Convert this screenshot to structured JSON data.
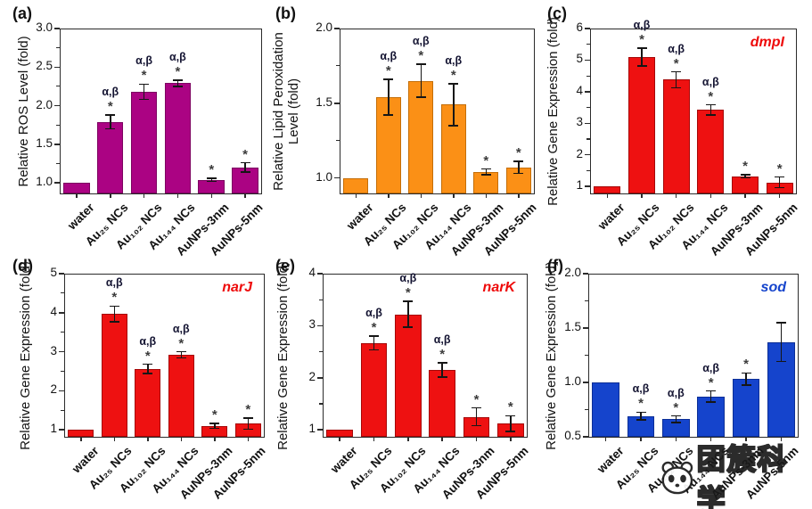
{
  "categories": [
    "water",
    "Au₂₅ NCs",
    "Au₁₀₂ NCs",
    "Au₁₄₄ NCs",
    "AuNPs-3nm",
    "AuNPs-5nm"
  ],
  "watermark": {
    "text": "团簇科学",
    "logo": "panda-icon"
  },
  "chart_data": [
    {
      "type": "bar",
      "panel": "(a)",
      "ylabel_lines": [
        "Relative ROS Level (fold)"
      ],
      "gene": "",
      "gene_color": "",
      "bar_color": "#AB0383",
      "bar_border": "#7D0261",
      "ylim": [
        0.85,
        3.0
      ],
      "ytick_labels": [
        "1.0",
        "1.5",
        "2.0",
        "2.5",
        "3.0"
      ],
      "ytick_values": [
        1.0,
        1.5,
        2.0,
        2.5,
        3.0
      ],
      "values": [
        1.0,
        1.79,
        2.18,
        2.29,
        1.04,
        1.2
      ],
      "errors": [
        0,
        0.09,
        0.1,
        0.04,
        0.02,
        0.06
      ],
      "annotations": [
        "",
        "α,β",
        "α,β",
        "α,β",
        "",
        ""
      ],
      "stars": [
        "",
        "*",
        "*",
        "*",
        "*",
        "*"
      ]
    },
    {
      "type": "bar",
      "panel": "(b)",
      "ylabel_lines": [
        "Relative Lipid Peroxidation",
        "Level (fold)"
      ],
      "gene": "",
      "gene_color": "",
      "bar_color": "#FB9016",
      "bar_border": "#C46E08",
      "ylim": [
        0.89,
        2.0
      ],
      "ytick_labels": [
        "1.0",
        "1.5",
        "2.0"
      ],
      "ytick_values": [
        1.0,
        1.5,
        2.0
      ],
      "values": [
        1.0,
        1.54,
        1.65,
        1.49,
        1.04,
        1.07
      ],
      "errors": [
        0,
        0.12,
        0.11,
        0.14,
        0.02,
        0.04
      ],
      "annotations": [
        "",
        "α,β",
        "α,β",
        "α,β",
        "",
        ""
      ],
      "stars": [
        "",
        "*",
        "*",
        "*",
        "*",
        "*"
      ]
    },
    {
      "type": "bar",
      "panel": "(c)",
      "ylabel_lines": [
        "Relative Gene Expression (fold)"
      ],
      "gene": "dmpI",
      "gene_color": "#EE0A0A",
      "bar_color": "#EE1111",
      "bar_border": "#A50808",
      "ylim": [
        0.75,
        6.0
      ],
      "ytick_labels": [
        "1",
        "2",
        "3",
        "4",
        "5",
        "6"
      ],
      "ytick_values": [
        1,
        2,
        3,
        4,
        5,
        6
      ],
      "values": [
        1.0,
        5.1,
        4.38,
        3.42,
        1.32,
        1.13
      ],
      "errors": [
        0,
        0.28,
        0.25,
        0.16,
        0.05,
        0.17
      ],
      "annotations": [
        "",
        "α,β",
        "α,β",
        "α,β",
        "",
        ""
      ],
      "stars": [
        "",
        "*",
        "*",
        "*",
        "*",
        "*"
      ]
    },
    {
      "type": "bar",
      "panel": "(d)",
      "ylabel_lines": [
        "Relative Gene Expression (fold)"
      ],
      "gene": "narJ",
      "gene_color": "#EE0A0A",
      "bar_color": "#EE1111",
      "bar_border": "#A50808",
      "ylim": [
        0.8,
        5.0
      ],
      "ytick_labels": [
        "1",
        "2",
        "3",
        "4",
        "5"
      ],
      "ytick_values": [
        1,
        2,
        3,
        4,
        5
      ],
      "values": [
        1.0,
        3.97,
        2.56,
        2.92,
        1.1,
        1.16
      ],
      "errors": [
        0,
        0.2,
        0.12,
        0.08,
        0.06,
        0.14
      ],
      "annotations": [
        "",
        "α,β",
        "α,β",
        "α,β",
        "",
        ""
      ],
      "stars": [
        "",
        "*",
        "*",
        "*",
        "*",
        "*"
      ]
    },
    {
      "type": "bar",
      "panel": "(e)",
      "ylabel_lines": [
        "Relative Gene Expression (fold)"
      ],
      "gene": "narK",
      "gene_color": "#EE0A0A",
      "bar_color": "#EE1111",
      "bar_border": "#A50808",
      "ylim": [
        0.85,
        4.0
      ],
      "ytick_labels": [
        "1",
        "2",
        "3",
        "4"
      ],
      "ytick_values": [
        1,
        2,
        3,
        4
      ],
      "values": [
        1.0,
        2.67,
        3.22,
        2.15,
        1.25,
        1.12
      ],
      "errors": [
        0,
        0.13,
        0.25,
        0.14,
        0.17,
        0.15
      ],
      "annotations": [
        "",
        "α,β",
        "α,β",
        "α,β",
        "",
        ""
      ],
      "stars": [
        "",
        "*",
        "*",
        "*",
        "*",
        "*"
      ]
    },
    {
      "type": "bar",
      "panel": "(f)",
      "ylabel_lines": [
        "Relative Gene Expression (fold)"
      ],
      "gene": "sod",
      "gene_color": "#1544CC",
      "bar_color": "#1544CC",
      "bar_border": "#0C2F96",
      "ylim": [
        0.49,
        2.0
      ],
      "ytick_labels": [
        "0.5",
        "1.0",
        "1.5",
        "2.0"
      ],
      "ytick_values": [
        0.5,
        1.0,
        1.5,
        2.0
      ],
      "values": [
        1.0,
        0.69,
        0.66,
        0.87,
        1.03,
        1.37
      ],
      "errors": [
        0,
        0.035,
        0.03,
        0.05,
        0.055,
        0.18
      ],
      "annotations": [
        "",
        "α,β",
        "α,β",
        "α,β",
        "",
        ""
      ],
      "stars": [
        "",
        "*",
        "*",
        "*",
        "*",
        ""
      ]
    }
  ]
}
